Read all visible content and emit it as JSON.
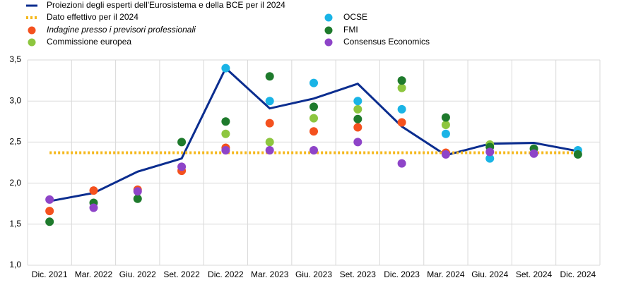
{
  "chart_data": {
    "type": "line",
    "categories": [
      "Dic. 2021",
      "Mar. 2022",
      "Giu. 2022",
      "Set. 2022",
      "Dic. 2022",
      "Mar. 2023",
      "Giu. 2023",
      "Set. 2023",
      "Dic. 2023",
      "Mar. 2024",
      "Giu. 2024",
      "Set. 2024",
      "Dic. 2024"
    ],
    "ylim": [
      1.0,
      3.5
    ],
    "yticks": [
      {
        "value": 1.0,
        "label": "1,0"
      },
      {
        "value": 1.5,
        "label": "1,5"
      },
      {
        "value": 2.0,
        "label": "2,0"
      },
      {
        "value": 2.5,
        "label": "2,5"
      },
      {
        "value": 3.0,
        "label": "3,0"
      },
      {
        "value": 3.5,
        "label": "3,5"
      }
    ],
    "grid": true,
    "series": [
      {
        "name": "Proiezioni degli esperti dell'Eurosistema e della BCE per il 2024",
        "style": "line",
        "color": "#0b2d8f",
        "values": [
          1.78,
          1.88,
          2.14,
          2.3,
          3.4,
          2.91,
          3.03,
          3.21,
          2.69,
          2.34,
          2.48,
          2.49,
          2.39
        ]
      },
      {
        "name": "Dato effettivo per il 2024",
        "style": "dotted",
        "color": "#f5b81c",
        "values": [
          2.37,
          2.37,
          2.37,
          2.37,
          2.37,
          2.37,
          2.37,
          2.37,
          2.37,
          2.37,
          2.37,
          2.37,
          2.37
        ]
      },
      {
        "name": "Indagine presso i previsori professionali",
        "style": "dot",
        "italic": true,
        "color": "#f4511e",
        "values": [
          1.66,
          1.91,
          1.92,
          2.15,
          2.43,
          2.73,
          2.63,
          2.68,
          2.74,
          2.37,
          null,
          null,
          null
        ]
      },
      {
        "name": "Commissione europea",
        "style": "dot",
        "color": "#8dc63f",
        "values": [
          null,
          null,
          null,
          null,
          2.6,
          2.5,
          2.79,
          2.9,
          3.16,
          2.71,
          2.47,
          null,
          null
        ]
      },
      {
        "name": "OCSE",
        "style": "dot",
        "color": "#1ab4e6",
        "values": [
          null,
          null,
          null,
          null,
          3.4,
          3.0,
          3.22,
          3.0,
          2.9,
          2.6,
          2.3,
          null,
          2.4
        ]
      },
      {
        "name": "FMI",
        "style": "dot",
        "color": "#1e7a2c",
        "values": [
          1.53,
          1.76,
          1.81,
          2.5,
          2.75,
          3.3,
          2.93,
          2.78,
          3.25,
          2.8,
          2.44,
          2.42,
          2.35
        ]
      },
      {
        "name": "Consensus Economics",
        "style": "dot",
        "color": "#8e44c8",
        "values": [
          1.8,
          1.7,
          1.9,
          2.2,
          2.4,
          2.4,
          2.4,
          2.5,
          2.24,
          2.35,
          2.38,
          2.36,
          null
        ]
      }
    ]
  }
}
